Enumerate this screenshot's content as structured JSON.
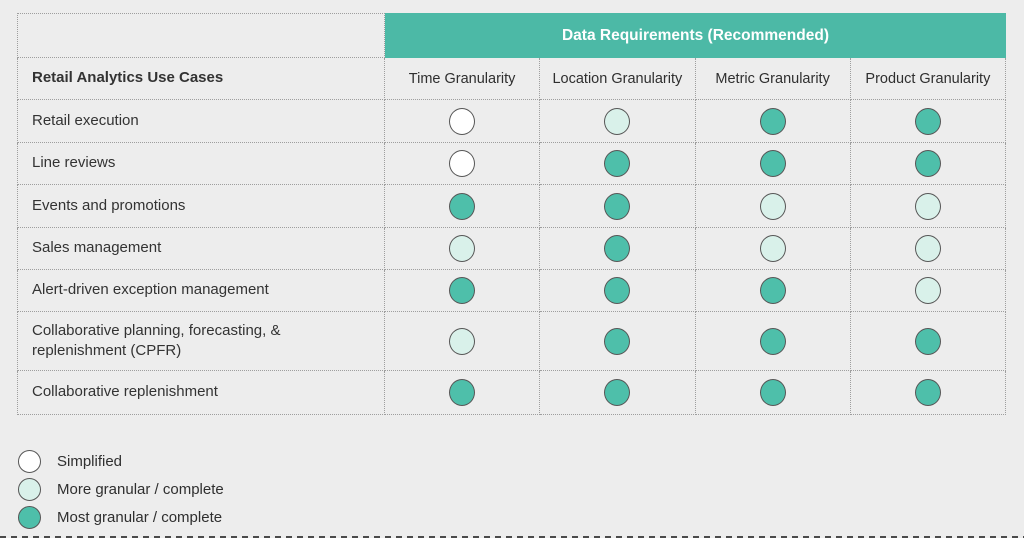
{
  "colors": {
    "accent_teal": "#4CB9A6",
    "dot_most": "#4EBFAA",
    "dot_more": "#D9F1EA",
    "dot_simplified": "#FFFFFF",
    "background": "#EDEDED",
    "grid_border": "#9E9E9E"
  },
  "chart_data": {
    "type": "heatmap",
    "title": "Data Requirements (Recommended)",
    "row_header": "Retail Analytics Use Cases",
    "columns": [
      "Time Granularity",
      "Location Granularity",
      "Metric Granularity",
      "Product Granularity"
    ],
    "value_scale": [
      "simplified",
      "more",
      "most"
    ],
    "rows": [
      {
        "label": "Retail execution",
        "cells": [
          "simplified",
          "more",
          "most",
          "most"
        ]
      },
      {
        "label": "Line reviews",
        "cells": [
          "simplified",
          "most",
          "most",
          "most"
        ]
      },
      {
        "label": "Events and promotions",
        "cells": [
          "most",
          "most",
          "more",
          "more"
        ]
      },
      {
        "label": "Sales management",
        "cells": [
          "more",
          "most",
          "more",
          "more"
        ]
      },
      {
        "label": "Alert-driven exception management",
        "cells": [
          "most",
          "most",
          "most",
          "more"
        ]
      },
      {
        "label": "Collaborative planning, forecasting, & replenishment (CPFR)",
        "cells": [
          "more",
          "most",
          "most",
          "most"
        ]
      },
      {
        "label": "Collaborative replenishment",
        "cells": [
          "most",
          "most",
          "most",
          "most"
        ]
      }
    ],
    "legend": [
      {
        "level": "simplified",
        "label": "Simplified"
      },
      {
        "level": "more",
        "label": "More granular / complete"
      },
      {
        "level": "most",
        "label": "Most granular / complete"
      }
    ],
    "legend_position": "bottom-left",
    "grid": "dotted"
  }
}
